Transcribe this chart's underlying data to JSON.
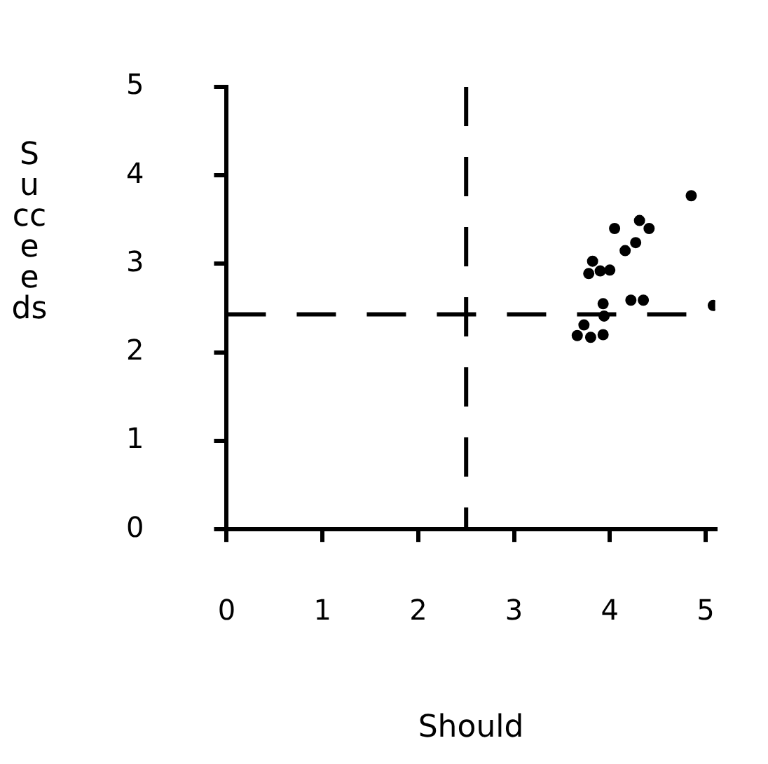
{
  "chart_data": {
    "type": "scatter",
    "xlabel": "Should",
    "ylabel": "Succeeds",
    "x": [
      4.85,
      4.31,
      4.05,
      4.41,
      4.27,
      4.16,
      3.82,
      3.78,
      3.9,
      4.0,
      4.22,
      4.35,
      3.93,
      5.08,
      3.94,
      3.73,
      3.66,
      3.8,
      3.93
    ],
    "values": [
      3.77,
      3.49,
      3.4,
      3.4,
      3.24,
      3.15,
      3.03,
      2.89,
      2.92,
      2.93,
      2.59,
      2.59,
      2.55,
      2.53,
      2.41,
      2.31,
      2.19,
      2.17,
      2.2
    ],
    "color": "#000000",
    "marker": "circle",
    "xlim": [
      0,
      5.1
    ],
    "xticks": [
      0,
      1,
      2,
      3,
      4,
      5
    ],
    "ylim": [
      0,
      5
    ],
    "yticks": [
      0,
      1,
      2,
      3,
      4,
      5
    ],
    "grid": false,
    "legend": false,
    "ref_lines": [
      {
        "axis": "x",
        "value": 2.5,
        "color": "#000000",
        "line_style": "dashed"
      },
      {
        "axis": "y",
        "value": 2.43,
        "color": "#000000",
        "line_style": "dashed"
      }
    ]
  }
}
